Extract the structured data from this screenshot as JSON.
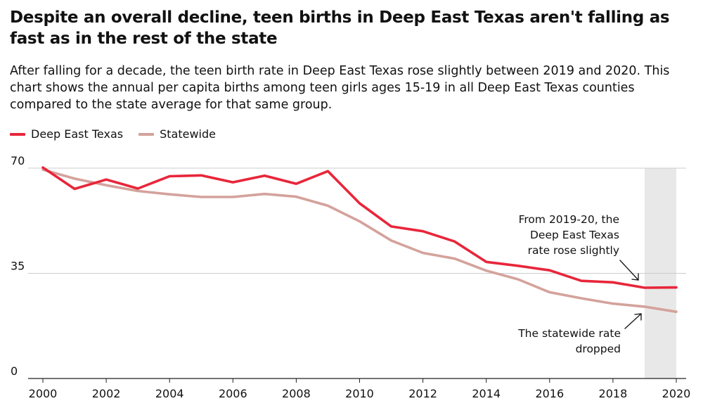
{
  "header": {
    "title": "Despite an overall decline, teen births in Deep East Texas aren't falling as fast as in the rest of the state",
    "subtitle": "After falling for a decade, the teen birth rate in Deep East Texas rose slightly between 2019 and 2020. This chart shows the annual per capita births among teen girls ages 15-19 in all Deep East Texas counties compared to the state average for that same group."
  },
  "colors": {
    "deep_east_texas": "#e8263a",
    "statewide": "#d4a29c",
    "highlight": "#e8e8e8",
    "grid": "#cccccc"
  },
  "chart_data": {
    "type": "line",
    "x": [
      2000,
      2001,
      2002,
      2003,
      2004,
      2005,
      2006,
      2007,
      2008,
      2009,
      2010,
      2011,
      2012,
      2013,
      2014,
      2015,
      2016,
      2017,
      2018,
      2019,
      2020
    ],
    "series": [
      {
        "name": "Deep East Texas",
        "values": [
          70.2,
          63.1,
          66.2,
          63.2,
          67.3,
          67.6,
          65.3,
          67.5,
          64.8,
          69.0,
          58.3,
          50.6,
          49.0,
          45.6,
          38.8,
          37.5,
          36.0,
          32.5,
          32.0,
          30.2,
          30.3
        ]
      },
      {
        "name": "Statewide",
        "values": [
          69.5,
          66.5,
          64.3,
          62.4,
          61.3,
          60.4,
          60.4,
          61.4,
          60.5,
          57.5,
          52.3,
          45.9,
          41.8,
          39.9,
          35.9,
          33.0,
          28.7,
          26.7,
          24.9,
          23.9,
          22.2
        ]
      }
    ],
    "y_ticks": [
      "70",
      "35",
      "0"
    ],
    "x_ticks": [
      "2000",
      "2002",
      "2004",
      "2006",
      "2008",
      "2010",
      "2012",
      "2014",
      "2016",
      "2018",
      "2020"
    ],
    "ylim": [
      0,
      70
    ],
    "xlim": [
      2000,
      2020
    ],
    "highlight_range": [
      2019,
      2020
    ],
    "grid": true,
    "legend_position": "top-left",
    "annotations": [
      {
        "lines": [
          "From 2019-20, the",
          "Deep East Texas",
          "rate rose slightly"
        ]
      },
      {
        "lines": [
          "The statewide rate",
          "dropped"
        ]
      }
    ]
  }
}
